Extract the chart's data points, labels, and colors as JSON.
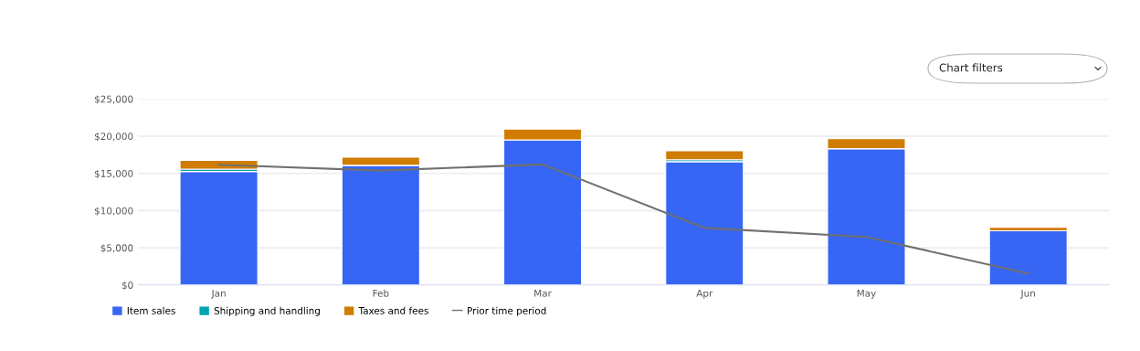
{
  "chart_data": {
    "type": "bar",
    "stacked": true,
    "categories": [
      "Jan",
      "Feb",
      "Mar",
      "Apr",
      "May",
      "Jun"
    ],
    "series": [
      {
        "name": "Item sales",
        "color": "#3766f4",
        "values": [
          15250,
          16080,
          19500,
          16580,
          18330,
          7290
        ]
      },
      {
        "name": "Shipping and handling",
        "color": "#00a3ad",
        "values": [
          330,
          0,
          0,
          250,
          0,
          0
        ]
      },
      {
        "name": "Taxes and fees",
        "color": "#d07c00",
        "values": [
          1170,
          1090,
          1460,
          1210,
          1340,
          460
        ]
      },
      {
        "name": "Prior time period",
        "type": "line",
        "color": "#707070",
        "values": [
          16170,
          15380,
          16210,
          7670,
          6460,
          1540
        ]
      }
    ],
    "ylim": [
      0,
      25000
    ],
    "yticks": [
      {
        "value": 0,
        "label": "$0"
      },
      {
        "value": 5000,
        "label": "$5,000"
      },
      {
        "value": 10000,
        "label": "$10,000"
      },
      {
        "value": 15000,
        "label": "$15,000"
      },
      {
        "value": 20000,
        "label": "$20,000"
      },
      {
        "value": 25000,
        "label": "$25,000"
      }
    ],
    "grid": "y",
    "legend": "bottom left",
    "annotations": [
      "Chart filters"
    ]
  }
}
